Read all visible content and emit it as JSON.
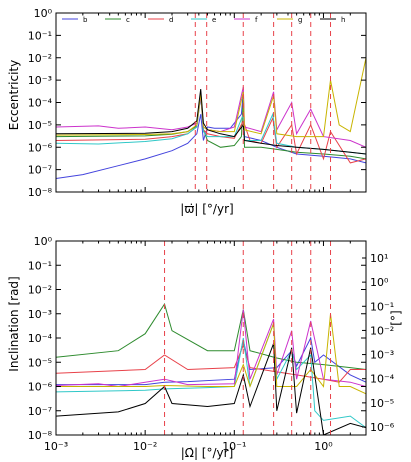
{
  "chart_data": [
    {
      "type": "line",
      "ylabel": "Eccentricity",
      "xlabel": "|ϖ̇|  [°/yr]",
      "xscale": "log",
      "yscale": "log",
      "xlim": [
        0.001,
        3
      ],
      "ylim": [
        1e-08,
        1
      ],
      "x_ticks_shown": false,
      "y_tick_labels": [
        "10⁰",
        "10⁻¹",
        "10⁻²",
        "10⁻³",
        "10⁻⁴",
        "10⁻⁵",
        "10⁻⁶",
        "10⁻⁷",
        "10⁻⁸"
      ],
      "legend": {
        "placement": "top",
        "entries": [
          "b",
          "c",
          "d",
          "e",
          "f",
          "g",
          "h"
        ]
      },
      "vlines": {
        "color": "#e8424a",
        "style": "dashed",
        "x": [
          0.0365,
          0.049,
          0.126,
          0.276,
          0.44,
          0.72,
          1.2
        ]
      },
      "series": [
        {
          "name": "b",
          "color": "#4444dd",
          "x": [
            0.001,
            0.002,
            0.005,
            0.01,
            0.02,
            0.03,
            0.038,
            0.042,
            0.045,
            0.05,
            0.06,
            0.09,
            0.12,
            0.126,
            0.13,
            0.2,
            0.3,
            0.5,
            1.0,
            2.0,
            3.0
          ],
          "y": [
            4e-08,
            6e-08,
            1.5e-07,
            3e-07,
            7e-07,
            1.5e-06,
            4e-06,
            3e-05,
            2e-06,
            8e-06,
            7e-06,
            7e-06,
            3e-05,
            0.0003,
            3e-06,
            2e-06,
            1e-06,
            5e-07,
            4e-07,
            3e-07,
            2e-07
          ]
        },
        {
          "name": "c",
          "color": "#2e8b2e",
          "x": [
            0.001,
            0.01,
            0.02,
            0.03,
            0.038,
            0.042,
            0.045,
            0.05,
            0.07,
            0.1,
            0.12,
            0.126,
            0.13,
            0.2,
            0.3,
            0.5,
            1.0,
            2.0,
            3.0
          ],
          "y": [
            3e-06,
            3.2e-06,
            3.8e-06,
            5e-06,
            9e-06,
            0.0003,
            6e-06,
            2e-06,
            1e-06,
            1.2e-06,
            3e-06,
            0.00014,
            1e-06,
            1e-06,
            8e-07,
            6e-07,
            5e-07,
            4e-07,
            3e-07
          ]
        },
        {
          "name": "d",
          "color": "#e8424a",
          "x": [
            0.001,
            0.01,
            0.02,
            0.03,
            0.038,
            0.042,
            0.045,
            0.05,
            0.07,
            0.1,
            0.126,
            0.15,
            0.2,
            0.27,
            0.3,
            0.44,
            0.5,
            0.72,
            1.0,
            1.2,
            2.0,
            3.0
          ],
          "y": [
            2e-06,
            2.3e-06,
            3e-06,
            4e-06,
            8e-06,
            0.0002,
            6e-06,
            4e-06,
            3e-06,
            2.5e-06,
            1.5e-05,
            2e-06,
            1.5e-06,
            2e-05,
            1e-06,
            1e-05,
            5e-07,
            1e-05,
            3e-07,
            5e-06,
            2e-07,
            3e-07
          ]
        },
        {
          "name": "e",
          "color": "#30c8c8",
          "x": [
            0.001,
            0.003,
            0.01,
            0.02,
            0.03,
            0.038,
            0.042,
            0.045,
            0.05,
            0.07,
            0.1,
            0.126,
            0.13,
            0.2,
            0.27,
            0.3,
            0.5,
            1.0,
            2.0,
            3.0
          ],
          "y": [
            1.5e-06,
            1.4e-06,
            1.8e-06,
            2.4e-06,
            4e-06,
            8e-06,
            0.0002,
            5e-06,
            3e-06,
            3e-06,
            3e-06,
            3e-05,
            2e-06,
            2e-06,
            3e-05,
            1.5e-06,
            1e-06,
            8e-07,
            6e-07,
            5e-07
          ]
        },
        {
          "name": "f",
          "color": "#cc33cc",
          "x": [
            0.001,
            0.003,
            0.005,
            0.01,
            0.02,
            0.03,
            0.038,
            0.042,
            0.045,
            0.05,
            0.07,
            0.1,
            0.126,
            0.13,
            0.2,
            0.276,
            0.3,
            0.44,
            0.5,
            0.72,
            1.0,
            2.0,
            3.0
          ],
          "y": [
            8e-06,
            9e-06,
            7e-06,
            8e-06,
            6e-06,
            8e-06,
            1.2e-05,
            0.0002,
            8e-06,
            6e-06,
            5e-06,
            8e-06,
            0.0005,
            8e-06,
            5e-06,
            0.0003,
            6e-06,
            0.0001,
            4e-06,
            5e-05,
            3e-06,
            2e-06,
            1e-06
          ]
        },
        {
          "name": "g",
          "color": "#c8b400",
          "x": [
            0.001,
            0.01,
            0.02,
            0.03,
            0.038,
            0.042,
            0.045,
            0.05,
            0.07,
            0.1,
            0.126,
            0.13,
            0.2,
            0.276,
            0.3,
            0.5,
            1.0,
            1.2,
            1.5,
            2.0,
            3.0
          ],
          "y": [
            3.5e-06,
            3.7e-06,
            4e-06,
            5e-06,
            1e-05,
            0.00025,
            8e-06,
            6e-06,
            5e-06,
            5e-06,
            0.0003,
            6e-06,
            4e-06,
            0.0002,
            4e-06,
            3e-06,
            3e-06,
            0.001,
            1e-05,
            5e-06,
            0.01
          ]
        },
        {
          "name": "h",
          "color": "#000000",
          "x": [
            0.001,
            0.01,
            0.02,
            0.03,
            0.038,
            0.042,
            0.045,
            0.05,
            0.07,
            0.1,
            0.126,
            0.13,
            0.2,
            0.3,
            0.5,
            1.0,
            2.0,
            3.0
          ],
          "y": [
            4e-06,
            4.2e-06,
            5e-06,
            7e-06,
            1.5e-05,
            0.0004,
            1.2e-05,
            6e-06,
            4e-06,
            3e-06,
            1e-05,
            2e-06,
            1.5e-06,
            1.2e-06,
            1e-06,
            8e-07,
            6e-07,
            5e-07
          ]
        }
      ]
    },
    {
      "type": "line",
      "ylabel": "Inclination [rad]",
      "ylabel_right": "[°]",
      "xlabel": "|Ω̇|  [°/yr]",
      "xscale": "log",
      "yscale": "log",
      "xlim": [
        0.001,
        3
      ],
      "ylim": [
        1e-08,
        1
      ],
      "x_tick_labels": [
        "10⁻³",
        "10⁻²",
        "10⁻¹",
        "10⁰"
      ],
      "y_tick_labels": [
        "10⁰",
        "10⁻¹",
        "10⁻²",
        "10⁻³",
        "10⁻⁴",
        "10⁻⁵",
        "10⁻⁶",
        "10⁻⁷",
        "10⁻⁸"
      ],
      "y_right_tick_labels": [
        "10¹",
        "10⁰",
        "10⁻¹",
        "10⁻²",
        "10⁻³",
        "10⁻⁴",
        "10⁻⁵",
        "10⁻⁶"
      ],
      "vlines": {
        "color": "#e8424a",
        "style": "dashed",
        "x": [
          0.0165,
          0.126,
          0.276,
          0.44,
          0.72,
          1.2
        ]
      },
      "series": [
        {
          "name": "b",
          "color": "#4444dd",
          "x": [
            0.001,
            0.01,
            0.0165,
            0.03,
            0.1,
            0.126,
            0.15,
            0.3,
            0.44,
            0.5,
            0.72,
            0.8,
            1.0,
            2.0,
            3.0
          ],
          "y": [
            1.2e-06,
            1.2e-06,
            1.5e-06,
            1.6e-06,
            2e-06,
            8e-05,
            5e-06,
            6e-06,
            3e-05,
            7e-06,
            0.0001,
            1e-05,
            2e-05,
            3e-06,
            1.5e-06
          ]
        },
        {
          "name": "c",
          "color": "#2e8b2e",
          "x": [
            0.001,
            0.005,
            0.01,
            0.0165,
            0.02,
            0.05,
            0.1,
            0.126,
            0.15,
            0.3,
            0.5,
            1.0,
            2.0,
            3.0
          ],
          "y": [
            1.6e-05,
            3e-05,
            0.00015,
            0.0025,
            0.0002,
            3e-05,
            3e-05,
            0.0015,
            3e-05,
            1.5e-05,
            1e-05,
            8e-06,
            6e-06,
            5e-06
          ]
        },
        {
          "name": "d",
          "color": "#e8424a",
          "x": [
            0.001,
            0.01,
            0.0165,
            0.03,
            0.1,
            0.126,
            0.15,
            0.3,
            0.5,
            1.0,
            1.5,
            2.0,
            3.0
          ],
          "y": [
            3.5e-06,
            5e-06,
            2e-05,
            5e-06,
            6e-06,
            5e-05,
            6e-06,
            4e-06,
            3e-06,
            2e-06,
            1.5e-06,
            5e-06,
            5e-06
          ]
        },
        {
          "name": "e",
          "color": "#30c8c8",
          "x": [
            0.001,
            0.01,
            0.0165,
            0.05,
            0.1,
            0.126,
            0.15,
            0.276,
            0.3,
            0.44,
            0.5,
            0.72,
            0.8,
            1.0,
            2.0,
            3.0
          ],
          "y": [
            6e-07,
            7e-07,
            8e-07,
            9e-07,
            1e-06,
            0.0001,
            1e-06,
            0.0004,
            2e-06,
            3e-05,
            5e-06,
            2e-05,
            1e-07,
            4e-08,
            6e-08,
            2e-08
          ]
        },
        {
          "name": "f",
          "color": "#cc33cc",
          "x": [
            0.001,
            0.003,
            0.005,
            0.01,
            0.0165,
            0.03,
            0.1,
            0.126,
            0.15,
            0.276,
            0.3,
            0.44,
            0.5,
            0.72,
            1.0,
            2.0,
            3.0
          ],
          "y": [
            1.1e-06,
            1.3e-06,
            1e-06,
            1.5e-06,
            2e-06,
            1.2e-06,
            1.3e-06,
            0.0015,
            2e-06,
            0.0006,
            3e-06,
            0.0002,
            2e-06,
            0.0005,
            2e-06,
            1.5e-06,
            1e-06
          ]
        },
        {
          "name": "g",
          "color": "#c8b400",
          "x": [
            0.001,
            0.01,
            0.0165,
            0.05,
            0.1,
            0.126,
            0.15,
            0.276,
            0.3,
            0.5,
            0.72,
            1.0,
            1.2,
            1.5,
            2.0,
            3.0
          ],
          "y": [
            1e-06,
            1e-06,
            1.1e-06,
            1e-06,
            1e-06,
            8e-06,
            1e-06,
            0.0004,
            1e-06,
            1e-06,
            5e-06,
            1e-06,
            0.001,
            1e-06,
            1e-06,
            5e-07
          ]
        },
        {
          "name": "h",
          "color": "#000000",
          "x": [
            0.001,
            0.005,
            0.01,
            0.0165,
            0.02,
            0.05,
            0.1,
            0.126,
            0.15,
            0.276,
            0.3,
            0.44,
            0.5,
            0.72,
            1.0,
            2.0,
            3.0
          ],
          "y": [
            6e-08,
            9e-08,
            2e-07,
            1e-06,
            2e-07,
            1.5e-07,
            2e-07,
            3e-06,
            1.5e-07,
            6e-05,
            1e-07,
            4e-05,
            8e-08,
            4e-05,
            1e-08,
            3e-08,
            2e-08
          ]
        }
      ]
    }
  ]
}
